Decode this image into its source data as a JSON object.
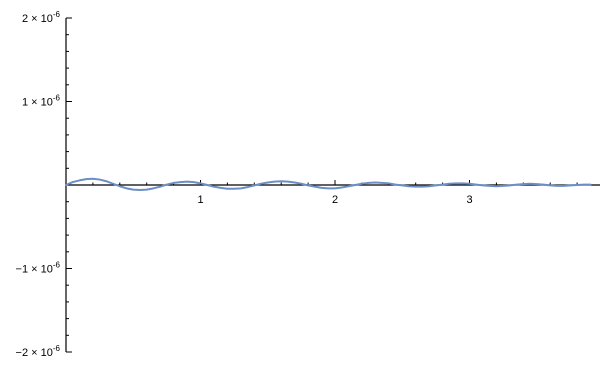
{
  "chart_data": {
    "type": "line",
    "title": "",
    "xlabel": "",
    "ylabel": "",
    "xlim": [
      0,
      3.9
    ],
    "ylim": [
      -2e-06,
      2e-06
    ],
    "grid": false,
    "x_ticks": [
      {
        "value": 1,
        "label": "1"
      },
      {
        "value": 2,
        "label": "2"
      },
      {
        "value": 3,
        "label": "3"
      }
    ],
    "y_ticks": [
      {
        "value": 2e-06,
        "mantissa": "2",
        "exponent": "-6"
      },
      {
        "value": 1e-06,
        "mantissa": "1",
        "exponent": "-6"
      },
      {
        "value": -1e-06,
        "mantissa": "−1",
        "exponent": "-6"
      },
      {
        "value": -2e-06,
        "mantissa": "−2",
        "exponent": "-6"
      }
    ],
    "x_minor_step": 0.2,
    "y_minor_step": 2e-07,
    "series": [
      {
        "color": "#6b8fc4",
        "x": [
          0.0,
          0.05,
          0.1,
          0.15,
          0.2,
          0.25,
          0.3,
          0.35,
          0.4,
          0.45,
          0.5,
          0.55,
          0.6,
          0.65,
          0.7,
          0.75,
          0.8,
          0.85,
          0.9,
          0.95,
          1.0,
          1.05,
          1.1,
          1.15,
          1.2,
          1.25,
          1.3,
          1.35,
          1.4,
          1.45,
          1.5,
          1.55,
          1.6,
          1.65,
          1.7,
          1.75,
          1.8,
          1.85,
          1.9,
          1.95,
          2.0,
          2.05,
          2.1,
          2.15,
          2.2,
          2.25,
          2.3,
          2.35,
          2.4,
          2.45,
          2.5,
          2.55,
          2.6,
          2.65,
          2.7,
          2.75,
          2.8,
          2.85,
          2.9,
          2.95,
          3.0,
          3.05,
          3.1,
          3.15,
          3.2,
          3.25,
          3.3,
          3.35,
          3.4,
          3.45,
          3.5,
          3.55,
          3.6,
          3.65,
          3.7,
          3.75,
          3.8,
          3.85,
          3.9
        ],
        "y": [
          0.0,
          3.5e-08,
          5.5e-08,
          7e-08,
          7.5e-08,
          6.5e-08,
          4.5e-08,
          1.5e-08,
          -1.5e-08,
          -4e-08,
          -5.5e-08,
          -6e-08,
          -5.5e-08,
          -4e-08,
          -2e-08,
          5e-09,
          2.5e-08,
          3.5e-08,
          4e-08,
          3.5e-08,
          2e-08,
          0.0,
          -2e-08,
          -3.5e-08,
          -4.5e-08,
          -4.5e-08,
          -4e-08,
          -2.5e-08,
          -5e-09,
          1.5e-08,
          3e-08,
          4e-08,
          4.5e-08,
          4e-08,
          3e-08,
          1.5e-08,
          -5e-09,
          -2e-08,
          -3.5e-08,
          -4e-08,
          -4e-08,
          -3e-08,
          -1.5e-08,
          0.0,
          1.5e-08,
          2.5e-08,
          3e-08,
          2.5e-08,
          2e-08,
          5e-09,
          -5e-09,
          -1.5e-08,
          -2e-08,
          -2e-08,
          -1.5e-08,
          -5e-09,
          5e-09,
          1.5e-08,
          2e-08,
          2e-08,
          1.5e-08,
          5e-09,
          -5e-09,
          -1e-08,
          -1.5e-08,
          -1e-08,
          -5e-09,
          5e-09,
          1e-08,
          1.5e-08,
          1e-08,
          5e-09,
          -5e-09,
          -1e-08,
          -1e-08,
          -5e-09,
          0.0,
          5e-09,
          5e-09
        ]
      }
    ]
  }
}
